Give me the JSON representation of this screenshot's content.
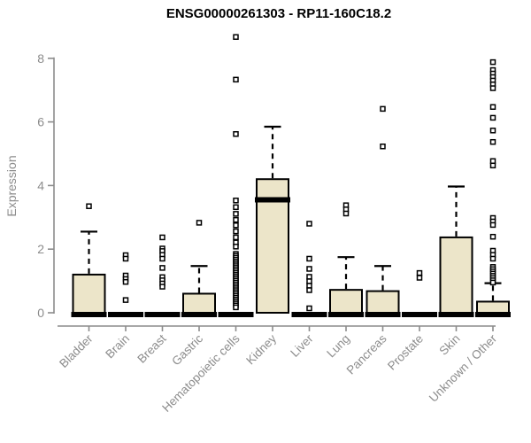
{
  "page": {
    "background": "#ffffff"
  },
  "chart_data": {
    "type": "boxplot",
    "title": "ENSG00000261303 - RP11-160C18.2",
    "ylabel": "Expression",
    "xlabel": "",
    "ylim": [
      0,
      8.8
    ],
    "yticks": [
      0,
      2,
      4,
      6,
      8
    ],
    "grid": false,
    "legend": "none",
    "axis_color": "#8c8c8c",
    "box_fill": "#ECE5C9",
    "box_stroke": "#000000",
    "categories": [
      "Bladder",
      "Brain",
      "Breast",
      "Gastric",
      "Hematopoietic cells",
      "Kidney",
      "Liver",
      "Lung",
      "Pancreas",
      "Prostate",
      "Skin",
      "Unknown / Other"
    ],
    "series": [
      {
        "name": "Bladder",
        "q1": 0,
        "median": 0,
        "q3": 1.2,
        "whisker_low": 0,
        "whisker_high": 2.55,
        "outliers": [
          3.35
        ]
      },
      {
        "name": "Brain",
        "q1": 0,
        "median": 0,
        "q3": 0,
        "whisker_low": 0,
        "whisker_high": 0,
        "outliers": [
          1.81,
          1.7,
          1.17,
          1.06,
          0.97,
          0.4
        ]
      },
      {
        "name": "Breast",
        "q1": 0,
        "median": 0,
        "q3": 0,
        "whisker_low": 0,
        "whisker_high": 0,
        "outliers": [
          2.37,
          2.02,
          1.94,
          1.82,
          1.7,
          1.41,
          1.12,
          1.02,
          0.92,
          0.82
        ]
      },
      {
        "name": "Gastric",
        "q1": 0,
        "median": 0,
        "q3": 0.6,
        "whisker_low": 0,
        "whisker_high": 1.47,
        "outliers": [
          2.83
        ]
      },
      {
        "name": "Hematopoietic cells",
        "q1": 0,
        "median": 0,
        "q3": 0,
        "whisker_low": 0,
        "whisker_high": 0,
        "outliers": [
          8.67,
          7.33,
          5.62,
          3.53,
          3.32,
          3.11,
          2.92,
          2.75,
          2.56,
          2.37,
          2.21,
          2.08,
          1.85,
          1.79,
          1.73,
          1.67,
          1.61,
          1.55,
          1.49,
          1.43,
          1.37,
          1.31,
          1.25,
          1.19,
          1.13,
          1.07,
          1.01,
          0.95,
          0.89,
          0.83,
          0.77,
          0.71,
          0.65,
          0.59,
          0.53,
          0.47,
          0.41,
          0.35,
          0.29,
          0.23,
          0.17
        ]
      },
      {
        "name": "Kidney",
        "q1": 0,
        "median": 3.55,
        "q3": 4.2,
        "whisker_low": 0,
        "whisker_high": 5.85,
        "outliers": []
      },
      {
        "name": "Liver",
        "q1": 0,
        "median": 0,
        "q3": 0,
        "whisker_low": 0,
        "whisker_high": 0,
        "outliers": [
          2.8,
          1.7,
          1.38,
          1.13,
          0.99,
          0.85,
          0.71,
          0.14
        ]
      },
      {
        "name": "Lung",
        "q1": 0,
        "median": 0,
        "q3": 0.72,
        "whisker_low": 0,
        "whisker_high": 1.75,
        "outliers": [
          3.38,
          3.25,
          3.12
        ]
      },
      {
        "name": "Pancreas",
        "q1": 0,
        "median": 0,
        "q3": 0.68,
        "whisker_low": 0,
        "whisker_high": 1.47,
        "outliers": [
          6.41,
          5.23
        ]
      },
      {
        "name": "Prostate",
        "q1": 0,
        "median": 0,
        "q3": 0,
        "whisker_low": 0,
        "whisker_high": 0,
        "outliers": [
          1.25,
          1.1
        ]
      },
      {
        "name": "Skin",
        "q1": 0,
        "median": 0,
        "q3": 2.37,
        "whisker_low": 0,
        "whisker_high": 3.97,
        "outliers": []
      },
      {
        "name": "Unknown / Other",
        "q1": 0,
        "median": 0,
        "q3": 0.35,
        "whisker_low": 0,
        "whisker_high": 0.93,
        "outliers": [
          7.88,
          7.63,
          7.52,
          7.41,
          7.3,
          7.18,
          7.06,
          6.47,
          6.13,
          5.73,
          5.37,
          4.77,
          4.63,
          2.98,
          2.87,
          2.76,
          2.39,
          1.95,
          1.82,
          1.7,
          1.44,
          1.37,
          1.3,
          1.23,
          1.16,
          1.09,
          1.02,
          0.95
        ]
      }
    ]
  }
}
